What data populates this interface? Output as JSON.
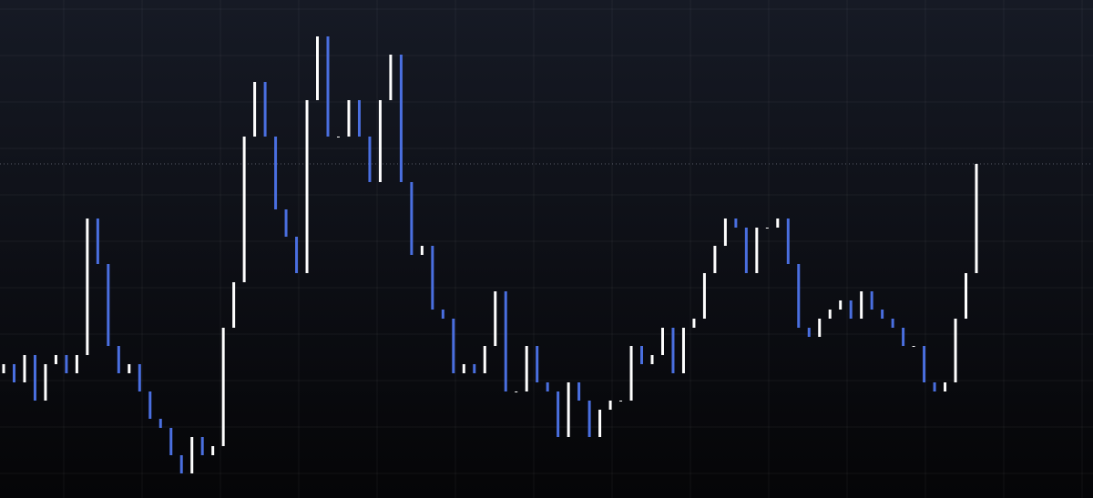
{
  "chart_data": {
    "type": "candlestick",
    "open": [
      137,
      147,
      127,
      157,
      107,
      147,
      157,
      137,
      157,
      307,
      257,
      167,
      137,
      147,
      117,
      87,
      77,
      47,
      27,
      67,
      47,
      57,
      187,
      237,
      397,
      457,
      397,
      317,
      287,
      247,
      437,
      507,
      397,
      397,
      437,
      397,
      347,
      437,
      487,
      347,
      267,
      277,
      207,
      197,
      137,
      147,
      137,
      167,
      227,
      117,
      117,
      167,
      127,
      117,
      67,
      127,
      107,
      67,
      97,
      107,
      107,
      167,
      147,
      157,
      187,
      137,
      187,
      197,
      247,
      277,
      307,
      297,
      247,
      297,
      297,
      307,
      257,
      187,
      177,
      197,
      207,
      217,
      197,
      227,
      207,
      197,
      187,
      167,
      167,
      127,
      117,
      127,
      197,
      247
    ],
    "close": [
      147,
      127,
      157,
      107,
      147,
      157,
      137,
      157,
      307,
      257,
      167,
      137,
      147,
      117,
      87,
      77,
      47,
      27,
      67,
      47,
      57,
      187,
      237,
      397,
      457,
      397,
      317,
      287,
      247,
      437,
      507,
      397,
      397,
      437,
      397,
      347,
      437,
      487,
      347,
      267,
      277,
      207,
      197,
      137,
      147,
      137,
      167,
      227,
      117,
      117,
      167,
      127,
      117,
      67,
      127,
      107,
      67,
      97,
      107,
      107,
      167,
      147,
      157,
      187,
      137,
      187,
      197,
      247,
      277,
      307,
      297,
      247,
      297,
      297,
      307,
      257,
      187,
      177,
      197,
      207,
      217,
      197,
      227,
      207,
      197,
      187,
      167,
      167,
      127,
      117,
      127,
      197,
      247,
      367
    ],
    "up_color": "#ffffff",
    "down_color": "#4a6fe0",
    "ylim": [
      0,
      547
    ],
    "last_price": 367,
    "grid": true
  }
}
